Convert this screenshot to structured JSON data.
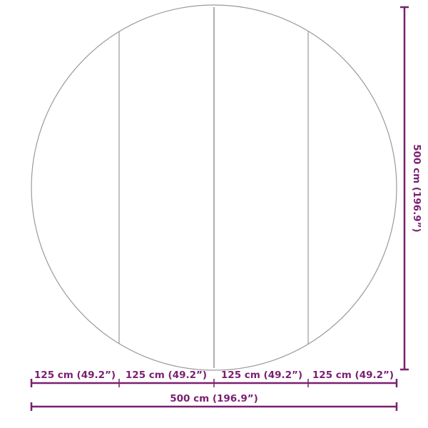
{
  "colors": {
    "dimension": "#7b1f6f",
    "outline": "#9a9a9a"
  },
  "segments": [
    {
      "label": "125 cm (49.2”)"
    },
    {
      "label": "125 cm (49.2”)"
    },
    {
      "label": "125 cm (49.2”)"
    },
    {
      "label": "125 cm (49.2”)"
    }
  ],
  "width_label": "500 cm (196.9”)",
  "height_label": "500 cm (196.9”)"
}
